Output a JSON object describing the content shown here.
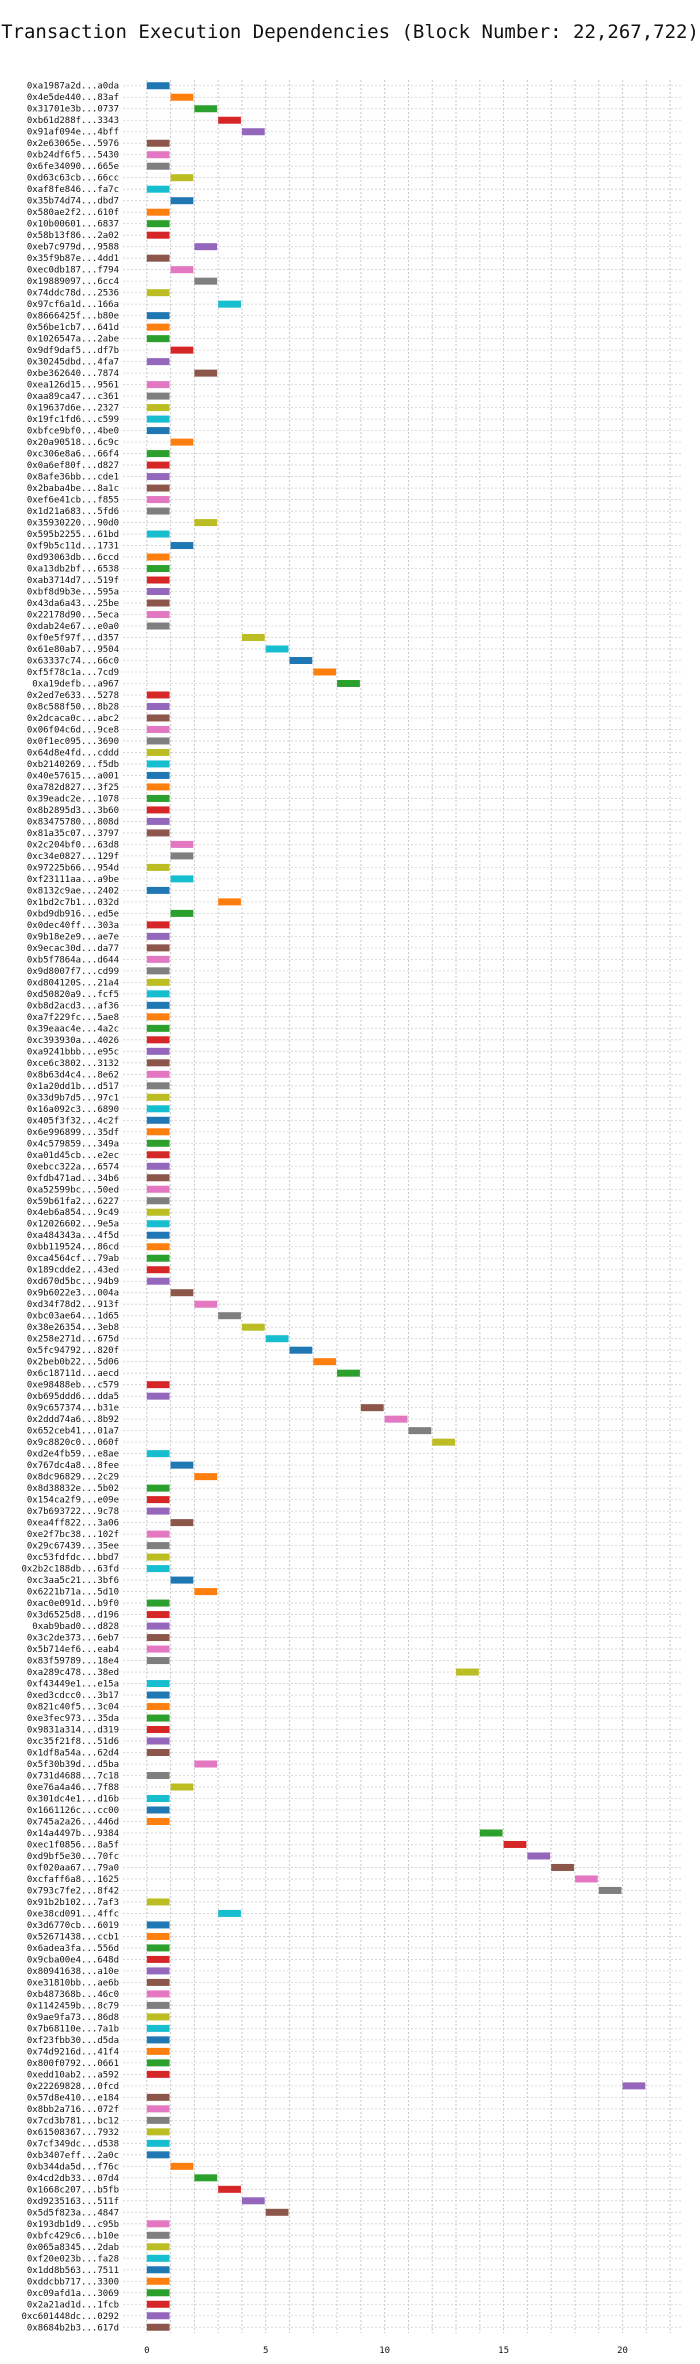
{
  "chart_data": {
    "type": "gantt",
    "title": "Transaction Execution Dependencies (Block Number: 22,267,722)",
    "xlabel": "",
    "ylabel": "",
    "xlim": [
      -1,
      22.5
    ],
    "xticks": [
      0,
      5,
      10,
      15,
      20
    ],
    "grid": true,
    "palette": [
      "#1f77b4",
      "#ff7f0e",
      "#2ca02c",
      "#d62728",
      "#9467bd",
      "#8c564b",
      "#e377c2",
      "#7f7f7f",
      "#bcbd22",
      "#17becf"
    ],
    "transactions": [
      [
        "0xa1987a2d...a0da",
        0
      ],
      [
        "0x4e5de440...83af",
        1
      ],
      [
        "0x31701e3b...0737",
        2
      ],
      [
        "0xb61d288f...3343",
        3
      ],
      [
        "0x91af094e...4bff",
        4
      ],
      [
        "0x2e63065e...5976",
        0
      ],
      [
        "0xb24df6f5...5430",
        0
      ],
      [
        "0x6fe34090...665e",
        0
      ],
      [
        "0xd63c63cb...66cc",
        1
      ],
      [
        "0xaf8fe846...fa7c",
        0
      ],
      [
        "0x35b74d74...dbd7",
        1
      ],
      [
        "0x580ae2f2...610f",
        0
      ],
      [
        "0x10b00601...6837",
        0
      ],
      [
        "0x58b13f86...2a02",
        0
      ],
      [
        "0xeb7c979d...9588",
        2
      ],
      [
        "0x35f9b87e...4dd1",
        0
      ],
      [
        "0xec0db187...f794",
        1
      ],
      [
        "0x19889097...6cc4",
        2
      ],
      [
        "0x74ddc78d...2536",
        0
      ],
      [
        "0x97cf6a1d...166a",
        3
      ],
      [
        "0x8666425f...b80e",
        0
      ],
      [
        "0x56be1cb7...641d",
        0
      ],
      [
        "0x1026547a...2abe",
        0
      ],
      [
        "0x9df9daf5...df7b",
        1
      ],
      [
        "0x30245dbd...4fa7",
        0
      ],
      [
        "0xbe362640...7874",
        2
      ],
      [
        "0xea126d15...9561",
        0
      ],
      [
        "0xaa89ca47...c361",
        0
      ],
      [
        "0x19637d6e...2327",
        0
      ],
      [
        "0x19fc1fd6...c599",
        0
      ],
      [
        "0xbfce9bf0...4be0",
        0
      ],
      [
        "0x20a90518...6c9c",
        1
      ],
      [
        "0xc306e8a6...66f4",
        0
      ],
      [
        "0x0a6ef80f...d827",
        0
      ],
      [
        "0x8afe36bb...cde1",
        0
      ],
      [
        "0x2baba4be...8a1c",
        0
      ],
      [
        "0xef6e41cb...f855",
        0
      ],
      [
        "0x1d21a683...5fd6",
        0
      ],
      [
        "0x35930220...90d0",
        2
      ],
      [
        "0x595b2255...61bd",
        0
      ],
      [
        "0xf9b5c11d...1731",
        1
      ],
      [
        "0xd93063db...6ccd",
        0
      ],
      [
        "0xa13db2bf...6538",
        0
      ],
      [
        "0xab3714d7...519f",
        0
      ],
      [
        "0xbf8d9b3e...595a",
        0
      ],
      [
        "0x43da6a43...25be",
        0
      ],
      [
        "0x22178d90...5eca",
        0
      ],
      [
        "0xdab24e67...e0a0",
        0
      ],
      [
        "0xf0e5f97f...d357",
        4
      ],
      [
        "0x61e80ab7...9504",
        5
      ],
      [
        "0x63337c74...66c0",
        6
      ],
      [
        "0xf5f78c1a...7cd9",
        7
      ],
      [
        "0xa19defb...a967",
        8
      ],
      [
        "0x2ed7e633...5278",
        0
      ],
      [
        "0x8c588f50...8b28",
        0
      ],
      [
        "0x2dcaca0c...abc2",
        0
      ],
      [
        "0x06f04c6d...9ce8",
        0
      ],
      [
        "0x0f1ec095...3690",
        0
      ],
      [
        "0x64d8e4fd...cddd",
        0
      ],
      [
        "0xb2140269...f5db",
        0
      ],
      [
        "0x40e57615...a001",
        0
      ],
      [
        "0xa782d827...3f25",
        0
      ],
      [
        "0x39eadc2e...1078",
        0
      ],
      [
        "0x8b2895d3...3b60",
        0
      ],
      [
        "0x83475780...808d",
        0
      ],
      [
        "0x81a35c07...3797",
        0
      ],
      [
        "0x2c204bf0...63d8",
        1
      ],
      [
        "0xc34e0827...129f",
        1
      ],
      [
        "0x97225b66...954d",
        0
      ],
      [
        "0xf23111aa...a9be",
        1
      ],
      [
        "0x8132c9ae...2402",
        0
      ],
      [
        "0x1bd2c7b1...032d",
        3
      ],
      [
        "0xbd9db916...ed5e",
        1
      ],
      [
        "0x0dec40ff...303a",
        0
      ],
      [
        "0x9b18e2e9...ae7e",
        0
      ],
      [
        "0x9ecac30d...da77",
        0
      ],
      [
        "0xb5f7864a...d644",
        0
      ],
      [
        "0x9d8007f7...cd99",
        0
      ],
      [
        "0xd804120S...21a4",
        0
      ],
      [
        "0xd50820a9...fcf5",
        0
      ],
      [
        "0xb8d2acd3...af36",
        0
      ],
      [
        "0xa7f229fc...5ae8",
        0
      ],
      [
        "0x39eaac4e...4a2c",
        0
      ],
      [
        "0xc393930a...4026",
        0
      ],
      [
        "0xa9241bbb...e95c",
        0
      ],
      [
        "0xce6c3802...3132",
        0
      ],
      [
        "0x8b63d4c4...8e62",
        0
      ],
      [
        "0x1a20dd1b...d517",
        0
      ],
      [
        "0x33d9b7d5...97c1",
        0
      ],
      [
        "0x16a092c3...6890",
        0
      ],
      [
        "0x405f3f32...4c2f",
        0
      ],
      [
        "0x6e996899...35df",
        0
      ],
      [
        "0x4c579859...349a",
        0
      ],
      [
        "0xa01d45cb...e2ec",
        0
      ],
      [
        "0xebcc322a...6574",
        0
      ],
      [
        "0xfdb471ad...34b6",
        0
      ],
      [
        "0xa52599bc...50ed",
        0
      ],
      [
        "0x59b61fa2...6227",
        0
      ],
      [
        "0x4eb6a854...9c49",
        0
      ],
      [
        "0x12026602...9e5a",
        0
      ],
      [
        "0xa484343a...4f5d",
        0
      ],
      [
        "0xbb119524...86cd",
        0
      ],
      [
        "0xca4564cf...79ab",
        0
      ],
      [
        "0x189cdde2...43ed",
        0
      ],
      [
        "0xd670d5bc...94b9",
        0
      ],
      [
        "0x9b6022e3...004a",
        1
      ],
      [
        "0xd34f78d2...913f",
        2
      ],
      [
        "0xbc03ae64...1d65",
        3
      ],
      [
        "0x38e26354...3eb8",
        4
      ],
      [
        "0x258e271d...675d",
        5
      ],
      [
        "0x5fc94792...820f",
        6
      ],
      [
        "0x2beb0b22...5d06",
        7
      ],
      [
        "0x6c18711d...aecd",
        8
      ],
      [
        "0xe98488eb...c579",
        0
      ],
      [
        "0xb695ddd6...dda5",
        0
      ],
      [
        "0x9c657374...b31e",
        9
      ],
      [
        "0x2ddd74a6...8b92",
        10
      ],
      [
        "0x652ceb41...01a7",
        11
      ],
      [
        "0x9c8820c0...060f",
        12
      ],
      [
        "0xd2e4fb59...e8ae",
        0
      ],
      [
        "0x767dc4a8...8fee",
        1
      ],
      [
        "0x8dc96829...2c29",
        2
      ],
      [
        "0x8d38832e...5b02",
        0
      ],
      [
        "0x154ca2f9...e09e",
        0
      ],
      [
        "0x7b693722...9c78",
        0
      ],
      [
        "0xea4ff822...3a06",
        1
      ],
      [
        "0xe2f7bc38...102f",
        0
      ],
      [
        "0x29c67439...35ee",
        0
      ],
      [
        "0xc53fdfdc...bbd7",
        0
      ],
      [
        "0x2b2c188db...63fd",
        0
      ],
      [
        "0xc3aa5c21...3bf6",
        1
      ],
      [
        "0x6221b71a...5d10",
        2
      ],
      [
        "0xac0e091d...b9f0",
        0
      ],
      [
        "0x3d6525d8...d196",
        0
      ],
      [
        "0xab9bad0...d828",
        0
      ],
      [
        "0x3c2de373...6eb7",
        0
      ],
      [
        "0x5b714ef6...eab4",
        0
      ],
      [
        "0x83f59789...18e4",
        0
      ],
      [
        "0xa289c478...38ed",
        13
      ],
      [
        "0xf43449e1...e15a",
        0
      ],
      [
        "0xed3cdcc0...3b17",
        0
      ],
      [
        "0x821c40f5...3c04",
        0
      ],
      [
        "0xe3fec973...35da",
        0
      ],
      [
        "0x9831a314...d319",
        0
      ],
      [
        "0xc35f21f8...51d6",
        0
      ],
      [
        "0x1df8a54a...62d4",
        0
      ],
      [
        "0x5f30b39d...d5ba",
        2
      ],
      [
        "0x731d4688...7c18",
        0
      ],
      [
        "0xe76a4a46...7f88",
        1
      ],
      [
        "0x301dc4e1...d16b",
        0
      ],
      [
        "0x1661126c...cc00",
        0
      ],
      [
        "0x745a2a26...446d",
        0
      ],
      [
        "0x14a4497b...9384",
        14
      ],
      [
        "0xec1f0856...8a5f",
        15
      ],
      [
        "0xd9bf5e30...70fc",
        16
      ],
      [
        "0xf020aa67...79a0",
        17
      ],
      [
        "0xcfaff6a8...1625",
        18
      ],
      [
        "0x793c7fe2...8f42",
        19
      ],
      [
        "0x91b2b102...7af3",
        0
      ],
      [
        "0xe38cd091...4ffc",
        3
      ],
      [
        "0x3d6770cb...6019",
        0
      ],
      [
        "0x52671438...ccb1",
        0
      ],
      [
        "0x6adea3fa...556d",
        0
      ],
      [
        "0x9cba00e4...648d",
        0
      ],
      [
        "0x80941638...a10e",
        0
      ],
      [
        "0xe31810bb...ae6b",
        0
      ],
      [
        "0xb487368b...46c0",
        0
      ],
      [
        "0x1142459b...8c79",
        0
      ],
      [
        "0x9ae9fa73...86d8",
        0
      ],
      [
        "0x7b68110e...7a1b",
        0
      ],
      [
        "0xf23fbb30...d5da",
        0
      ],
      [
        "0x74d9216d...41f4",
        0
      ],
      [
        "0x800f0792...0661",
        0
      ],
      [
        "0xedd10ab2...a592",
        0
      ],
      [
        "0x22269828...0fcd",
        20
      ],
      [
        "0x57d8e410...e184",
        0
      ],
      [
        "0x8bb2a716...072f",
        0
      ],
      [
        "0x7cd3b781...bc12",
        0
      ],
      [
        "0x61508367...7932",
        0
      ],
      [
        "0x7cf349dc...d538",
        0
      ],
      [
        "0xb3407eff...2a0c",
        0
      ],
      [
        "0xb344da5d...f76c",
        1
      ],
      [
        "0x4cd2db33...07d4",
        2
      ],
      [
        "0x1668c207...b5fb",
        3
      ],
      [
        "0xd9235163...511f",
        4
      ],
      [
        "0x5d5f823a...4847",
        5
      ],
      [
        "0x193db1d9...c95b",
        0
      ],
      [
        "0xbfc429c6...b10e",
        0
      ],
      [
        "0x065a8345...2dab",
        0
      ],
      [
        "0xf20e023b...fa28",
        0
      ],
      [
        "0x1dd8b563...7511",
        0
      ],
      [
        "0xddcbb717...3300",
        0
      ],
      [
        "0xc09afd1a...3069",
        0
      ],
      [
        "0x2a21ad1d...1fcb",
        0
      ],
      [
        "0xc601448dc...0292",
        0
      ],
      [
        "0x8684b2b3...617d",
        0
      ]
    ]
  }
}
